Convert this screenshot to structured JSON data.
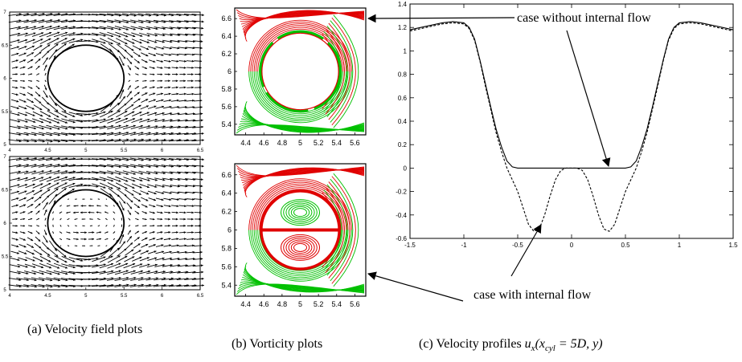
{
  "figure": {
    "captions": {
      "a": "(a) Velocity field plots",
      "b": "(b) Vorticity plots",
      "c_prefix": "(c) Velocity profiles ",
      "c_math": "u_x(x_cyl = 5D, y)"
    },
    "annotations": {
      "top": "case without internal flow",
      "bottom": "case with internal flow"
    },
    "colors": {
      "positive_vorticity": "#e00000",
      "negative_vorticity": "#00c000",
      "ink": "#000000"
    }
  },
  "chart_data": [
    {
      "id": "velocity-field-top",
      "type": "quiver",
      "x_ticks": [
        "4",
        "4.5",
        "5",
        "5.5",
        "6",
        "6.5"
      ],
      "y_ticks": [
        "5",
        "5.5",
        "6",
        "6.5",
        "7"
      ],
      "xlim": [
        4,
        6.5
      ],
      "ylim": [
        5,
        7
      ],
      "cylinder": {
        "center": [
          5,
          6
        ],
        "radius": 0.5
      },
      "internal_flow": false
    },
    {
      "id": "velocity-field-bottom",
      "type": "quiver",
      "x_ticks": [
        "4",
        "4.5",
        "5",
        "5.5",
        "6",
        "6.5"
      ],
      "y_ticks": [
        "5",
        "5.5",
        "6",
        "6.5",
        "7"
      ],
      "xlim": [
        4,
        6.5
      ],
      "ylim": [
        5,
        7
      ],
      "cylinder": {
        "center": [
          5,
          6
        ],
        "radius": 0.5
      },
      "internal_flow": true
    },
    {
      "id": "vorticity-top",
      "type": "contour",
      "x_ticks": [
        "4.4",
        "4.6",
        "4.8",
        "5",
        "5.2",
        "5.4",
        "5.6"
      ],
      "y_ticks": [
        "5.4",
        "5.6",
        "5.8",
        "6",
        "6.2",
        "6.4",
        "6.6"
      ],
      "xlim": [
        4.28,
        5.72
      ],
      "ylim": [
        5.28,
        6.72
      ],
      "internal_flow": false
    },
    {
      "id": "vorticity-bottom",
      "type": "contour",
      "x_ticks": [
        "4.4",
        "4.6",
        "4.8",
        "5",
        "5.2",
        "5.4",
        "5.6"
      ],
      "y_ticks": [
        "5.4",
        "5.6",
        "5.8",
        "6",
        "6.2",
        "6.4",
        "6.6"
      ],
      "xlim": [
        4.28,
        5.72
      ],
      "ylim": [
        5.28,
        6.72
      ],
      "internal_flow": true
    },
    {
      "id": "velocity-profile",
      "type": "line",
      "xlim": [
        -1.5,
        1.5
      ],
      "ylim": [
        -0.6,
        1.4
      ],
      "x_ticks": [
        "-1.5",
        "-1",
        "-0.5",
        "0",
        "0.5",
        "1",
        "1.5"
      ],
      "y_ticks": [
        "-0.6",
        "-0.4",
        "-0.2",
        "0",
        "0.2",
        "0.4",
        "0.6",
        "0.8",
        "1",
        "1.2",
        "1.4"
      ],
      "series": [
        {
          "style": "solid",
          "x": [
            -1.5,
            -1.4,
            -1.3,
            -1.2,
            -1.1,
            -1.0,
            -0.95,
            -0.9,
            -0.85,
            -0.8,
            -0.75,
            -0.7,
            -0.65,
            -0.6,
            -0.55,
            -0.5,
            -0.3,
            0,
            0.3,
            0.5,
            0.55,
            0.6,
            0.65,
            0.7,
            0.75,
            0.8,
            0.85,
            0.9,
            0.95,
            1.0,
            1.1,
            1.2,
            1.3,
            1.4,
            1.5
          ],
          "y": [
            1.18,
            1.2,
            1.22,
            1.24,
            1.25,
            1.24,
            1.2,
            1.1,
            0.92,
            0.72,
            0.52,
            0.33,
            0.18,
            0.06,
            0.01,
            0.0,
            0.0,
            0.0,
            0.0,
            0.0,
            0.01,
            0.06,
            0.18,
            0.33,
            0.52,
            0.72,
            0.92,
            1.1,
            1.2,
            1.24,
            1.25,
            1.24,
            1.22,
            1.2,
            1.18
          ]
        },
        {
          "style": "dashed",
          "x": [
            -1.5,
            -1.4,
            -1.3,
            -1.2,
            -1.1,
            -1.0,
            -0.95,
            -0.9,
            -0.85,
            -0.8,
            -0.75,
            -0.7,
            -0.65,
            -0.6,
            -0.55,
            -0.5,
            -0.45,
            -0.4,
            -0.35,
            -0.3,
            -0.25,
            -0.2,
            -0.15,
            -0.1,
            -0.05,
            0,
            0.05,
            0.1,
            0.15,
            0.2,
            0.25,
            0.3,
            0.35,
            0.4,
            0.45,
            0.5,
            0.55,
            0.6,
            0.65,
            0.7,
            0.75,
            0.8,
            0.85,
            0.9,
            0.95,
            1.0,
            1.1,
            1.2,
            1.3,
            1.4,
            1.5
          ],
          "y": [
            1.17,
            1.19,
            1.21,
            1.23,
            1.24,
            1.23,
            1.19,
            1.09,
            0.91,
            0.7,
            0.5,
            0.3,
            0.14,
            0.0,
            -0.1,
            -0.2,
            -0.34,
            -0.48,
            -0.54,
            -0.52,
            -0.4,
            -0.24,
            -0.1,
            -0.02,
            0.0,
            0.0,
            0.0,
            -0.02,
            -0.1,
            -0.24,
            -0.4,
            -0.52,
            -0.54,
            -0.48,
            -0.34,
            -0.2,
            -0.1,
            0.0,
            0.14,
            0.3,
            0.5,
            0.7,
            0.91,
            1.09,
            1.19,
            1.23,
            1.24,
            1.23,
            1.21,
            1.19,
            1.17
          ]
        }
      ]
    }
  ]
}
